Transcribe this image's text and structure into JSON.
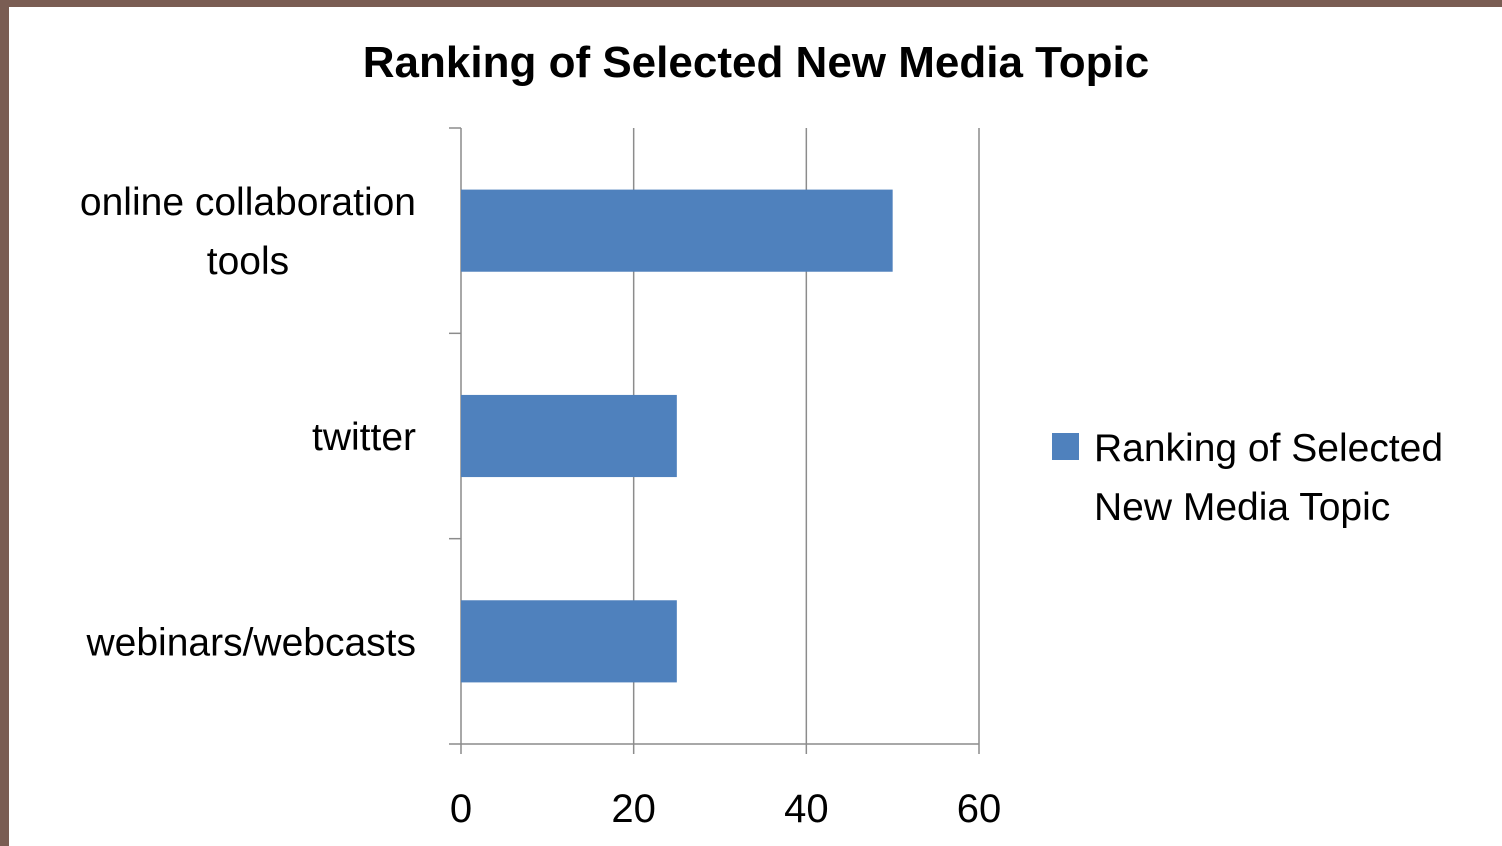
{
  "chart_data": {
    "type": "bar",
    "orientation": "horizontal",
    "title": "Ranking of Selected New Media Topic",
    "categories": [
      [
        "online collaboration",
        "tools"
      ],
      [
        "twitter"
      ],
      [
        "webinars/webcasts"
      ]
    ],
    "series": [
      {
        "name": [
          "Ranking of Selected",
          "New Media Topic"
        ],
        "values": [
          50,
          25,
          25
        ],
        "color": "#4f81bd"
      }
    ],
    "xlim": [
      0,
      60
    ],
    "xticks": [
      "0",
      "20",
      "40",
      "60"
    ],
    "grid": true,
    "legend": "right"
  }
}
